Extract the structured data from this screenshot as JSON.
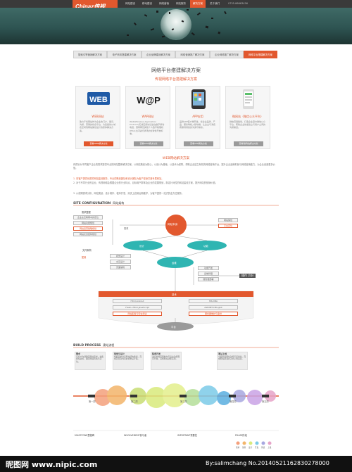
{
  "brand": {
    "name": "Chinaz传视",
    "tagline": "网站全程策划整合服务商",
    "accent": "#e2582e"
  },
  "nav": {
    "items": [
      "网站建设",
      "移动建设",
      "网络营销",
      "网站服务",
      "解决方案",
      "关于我们"
    ],
    "active_index": 4,
    "phone": "0755-86663456"
  },
  "tabs": {
    "items": [
      "搜索引擎营销解决方案",
      "电子商务搭建解决方案",
      "企业品牌建设解决方案",
      "网络营销推广解决方案",
      "企业网络推广解决方案",
      "网络平台搭建解决方案"
    ],
    "active_index": 5
  },
  "main": {
    "title": "网络平台搭建解决方案",
    "subtitle": "传视网络平台搭建解决方案"
  },
  "cards": [
    {
      "logo": "WEB",
      "title": "WEB网站",
      "desc": "致力于将网站作为企业的门户、展示、沟通、营销的综合平台，为您提供从域名空间到网站策划设计的整体解决方案。",
      "button": "查看WEB解决方案",
      "active": true
    },
    {
      "logo": "W@P",
      "title": "WAP网站",
      "desc": "WAP(Wireless Application Protocol)无线应用协议是在数字移动电话、因特网及其他个人数字助理机(PDA)之间进行通讯的全球性开放标准。",
      "button": "查看WAP解决方案",
      "active": false
    },
    {
      "logo": "APP",
      "title": "APP应用",
      "desc": "品牌APP客户端开发，将企业品牌、产品、服务等植入移动端，让企业与消费者保持持续的沟通与联系。",
      "button": "查看APP解决方案",
      "active": false
    },
    {
      "logo": "微",
      "title": "微网站（微信公众平台）",
      "desc": "微信营销策划，打造企业官方微信公众平台，帮助企业快速建立与用户之间的沟通渠道。",
      "button": "查看微网站解决方案",
      "active": false
    }
  ],
  "web_section": {
    "title": "WEB网站解决方案",
    "intro": "传视针对不同客户企业的需求提供专业的网站整体解决方案，以网站策划为核心，以设计为基础，以技术为保障，帮助企业建立有效的网络营销平台，提升企业品牌形象与网络营销能力，为企业创造更多价值。",
    "points": [
      "1. 向客户提供优质的网站建设服务，专业的策划团队和设计团队为客户量身打造专属网站。",
      "2. 对于不同行业的企业，传视网络会根据企业的行业特点、目标用户群体及企业的发展规划，制定针对性的网站建设方案，提升网站的营销价值。",
      "3. 从前期需求分析、网站策划、设计制作、程序开发、测试上线到后期维护，为客户提供一站式的全方位服务。"
    ]
  },
  "site_config": {
    "title_en": "SITE CONFIGURATION",
    "title_zh": "网站架构",
    "center": "网站本身",
    "left_node": "设计",
    "right_node": "功能",
    "mid_node": "运维",
    "tech": "技术",
    "platform": "平台",
    "left_group_title": "需求整理",
    "left_items": [
      "企业在互联网中的定位",
      "网站功能规划",
      "网站运营策略规划",
      "网站栏目结构规划"
    ],
    "left_group2_title": "文件架构",
    "left_items2": [
      "视觉设计",
      "交互设计",
      "页面编辑"
    ],
    "right_items": [
      "网站策划",
      "平台定位"
    ],
    "right_items2": [
      "功能开发",
      "运维管理",
      "服务器部署"
    ],
    "side_label": "操作 方针",
    "left_note": "需求",
    "right_note": "配置",
    "tech_items": [
      "Html,Linkout",
      "MS,DBA",
      "Flash+Html,JavaScript",
      "ASP.NET,DB,AJAX",
      "网站配置与安全测试",
      "服务器维护与备份"
    ]
  },
  "build": {
    "title_en": "BUILD PROCESS",
    "title_zh": "建站流程",
    "notes": [
      {
        "title": "需求",
        "text": "与客户沟通确定网站需求，收集网站资料，确定网站风格与定位。"
      },
      {
        "title": "策划与设计",
        "text": "根据需求进行网站结构策划，完成首页及内页的视觉设计稿。"
      },
      {
        "title": "程序开发",
        "text": "进行前端页面制作与后台功能程序开发，完成网站功能实现。"
      },
      {
        "title": "测试上线",
        "text": "全面测试网站功能与兼容性，完成网站部署并正式上线运营。"
      }
    ],
    "phases": [
      "第一周",
      "第二周",
      "第三周",
      "第四周",
      "第五周"
    ],
    "legend_titles": [
      "MILESTONE里程碑",
      "INVOLVEMENT参与者",
      "IMPORTANT重要性",
      "PHASE阶段"
    ],
    "phase_legend": [
      "需求",
      "策划",
      "设计",
      "开发",
      "测试",
      "上线"
    ]
  },
  "footer": {
    "left": "昵图网 www.nipic.com",
    "right": "By:salimchang No.20140521162830278000"
  }
}
